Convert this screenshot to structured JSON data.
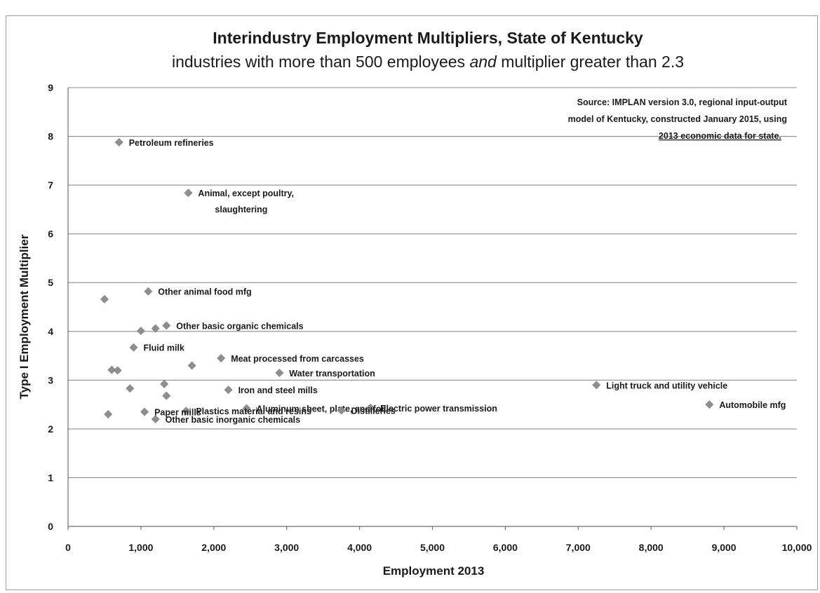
{
  "chart_data": {
    "type": "scatter",
    "title": "Interindustry Employment Multipliers, State of Kentucky",
    "subtitle_parts": [
      "industries with more than 500 employees ",
      "and",
      " multiplier greater than 2.3"
    ],
    "xlabel": "Employment 2013",
    "ylabel": "Type I Employment Multiplier",
    "xlim": [
      0,
      10000
    ],
    "ylim": [
      0,
      9
    ],
    "x_ticks": [
      "0",
      "1,000",
      "2,000",
      "3,000",
      "4,000",
      "5,000",
      "6,000",
      "7,000",
      "8,000",
      "9,000",
      "10,000"
    ],
    "y_ticks": [
      "0",
      "1",
      "2",
      "3",
      "4",
      "5",
      "6",
      "7",
      "8",
      "9"
    ],
    "grid": true,
    "marker_color": "#8f8f8f",
    "source_note": [
      "Source: IMPLAN version 3.0, regional input-output",
      "model of Kentucky, constructed January 2015, using",
      "2013 economic data for state."
    ],
    "points": [
      {
        "x": 700,
        "y": 7.88,
        "label": [
          "Petroleum refineries"
        ]
      },
      {
        "x": 1650,
        "y": 6.84,
        "label": [
          "Animal, except poultry,",
          "slaughtering"
        ]
      },
      {
        "x": 1100,
        "y": 4.82,
        "label": [
          "Other animal food mfg"
        ]
      },
      {
        "x": 500,
        "y": 4.66,
        "label": []
      },
      {
        "x": 1350,
        "y": 4.12,
        "label": [
          "Other basic organic chemicals"
        ]
      },
      {
        "x": 1200,
        "y": 4.06,
        "label": []
      },
      {
        "x": 1000,
        "y": 4.01,
        "label": []
      },
      {
        "x": 900,
        "y": 3.67,
        "label": [
          "Fluid milk"
        ]
      },
      {
        "x": 2100,
        "y": 3.45,
        "label": [
          "Meat processed from carcasses"
        ]
      },
      {
        "x": 1700,
        "y": 3.3,
        "label": []
      },
      {
        "x": 600,
        "y": 3.21,
        "label": []
      },
      {
        "x": 680,
        "y": 3.2,
        "label": []
      },
      {
        "x": 2900,
        "y": 3.15,
        "label": [
          "Water transportation"
        ]
      },
      {
        "x": 1320,
        "y": 2.92,
        "label": []
      },
      {
        "x": 850,
        "y": 2.83,
        "label": []
      },
      {
        "x": 2200,
        "y": 2.8,
        "label": [
          "Iron and steel mills"
        ]
      },
      {
        "x": 1350,
        "y": 2.68,
        "label": []
      },
      {
        "x": 7250,
        "y": 2.9,
        "label": [
          "Light truck and utility vehicle"
        ]
      },
      {
        "x": 8800,
        "y": 2.5,
        "label": [
          "Automobile mfg"
        ]
      },
      {
        "x": 2450,
        "y": 2.42,
        "label": [
          "Aluminum sheet, plate, and foil"
        ]
      },
      {
        "x": 4150,
        "y": 2.43,
        "label": [
          "Electric power transmission"
        ]
      },
      {
        "x": 3750,
        "y": 2.38,
        "label": [
          "Distilleries"
        ]
      },
      {
        "x": 1620,
        "y": 2.37,
        "label": [
          "Plastics material and resins"
        ]
      },
      {
        "x": 1050,
        "y": 2.35,
        "label": [
          "Paper mills"
        ]
      },
      {
        "x": 550,
        "y": 2.3,
        "label": []
      },
      {
        "x": 1200,
        "y": 2.2,
        "label": [
          "Other basic inorganic chemicals"
        ]
      }
    ]
  }
}
